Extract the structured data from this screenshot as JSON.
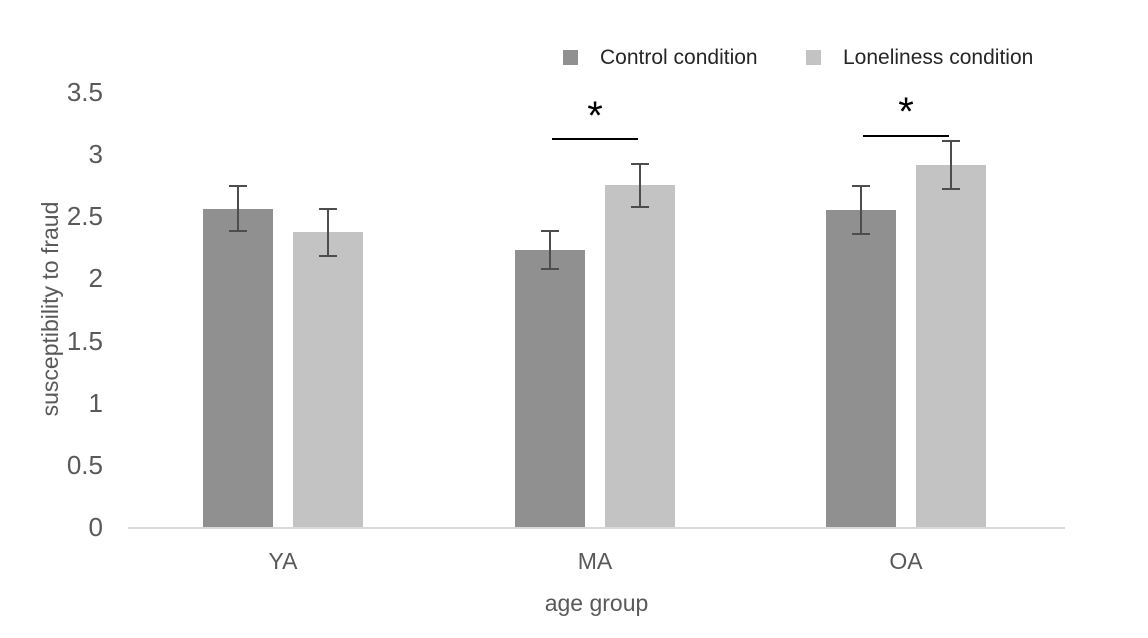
{
  "chart_data": {
    "type": "bar",
    "title": "",
    "xlabel": "age group",
    "ylabel": "susceptibility to fraud",
    "categories": [
      "YA",
      "MA",
      "OA"
    ],
    "series": [
      {
        "name": "Control condition",
        "color": "#909090",
        "values": [
          2.56,
          2.23,
          2.55
        ],
        "errors": [
          0.19,
          0.16,
          0.2
        ]
      },
      {
        "name": "Loneliness condition",
        "color": "#c3c3c3",
        "values": [
          2.37,
          2.75,
          2.91
        ],
        "errors": [
          0.2,
          0.18,
          0.2
        ]
      }
    ],
    "y_ticks": [
      "3.5",
      "3",
      "2.5",
      "2",
      "1.5",
      "1",
      "0.5",
      "0"
    ],
    "ylim": [
      0,
      3.5
    ],
    "grid": false,
    "legend_position": "top-right",
    "annotations": [
      {
        "category": "MA",
        "label": "*"
      },
      {
        "category": "OA",
        "label": "*"
      }
    ],
    "colors": {
      "error_bar": "#4d4d4d",
      "axis_line": "#d9d9d9",
      "axis_text": "#595959",
      "legend_text": "#262626",
      "annotation": "#000000"
    }
  }
}
